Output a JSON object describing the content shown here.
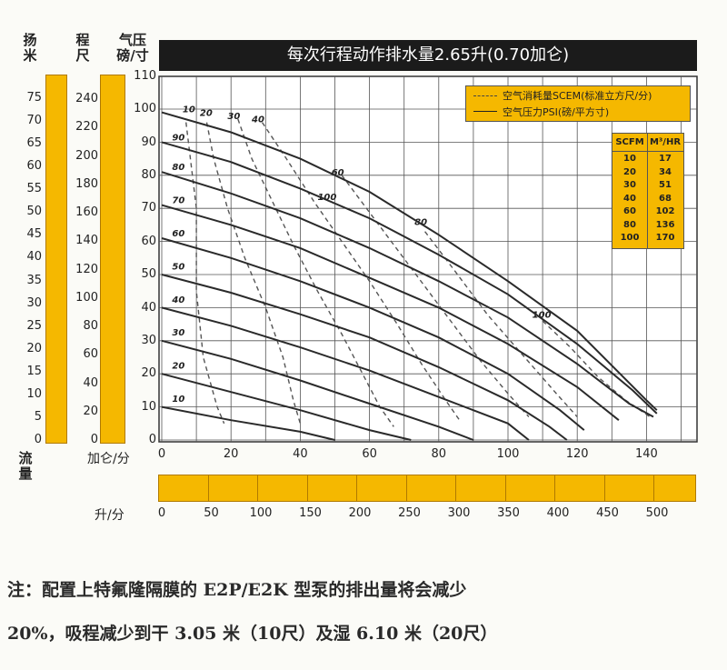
{
  "chart_data": {
    "type": "line",
    "title": "每次行程动作排水量2.65升(0.70加仑)",
    "xlabel": "流量",
    "x_unit_gpm": "加仑/分",
    "x_unit_lpm": "升/分",
    "xlim": [
      0,
      150
    ],
    "x_ticks": [
      "0",
      "20",
      "40",
      "60",
      "80",
      "100",
      "120",
      "140"
    ],
    "lpm_ticks": [
      "0",
      "50",
      "100",
      "150",
      "200",
      "250",
      "300",
      "350",
      "400",
      "450",
      "500"
    ],
    "ylim": [
      0,
      110
    ],
    "psi_label": "气压\n磅/寸",
    "psi_ticks": [
      "0",
      "10",
      "20",
      "30",
      "40",
      "50",
      "60",
      "70",
      "80",
      "90",
      "100",
      "110"
    ],
    "ft_label": "程\n尺",
    "ft_ticks": [
      "0",
      "20",
      "40",
      "60",
      "80",
      "100",
      "120",
      "140",
      "160",
      "180",
      "200",
      "220",
      "240"
    ],
    "m_label": "扬\n米",
    "m_ticks": [
      "0",
      "5",
      "10",
      "15",
      "20",
      "25",
      "30",
      "35",
      "40",
      "45",
      "50",
      "55",
      "60",
      "65",
      "70",
      "75"
    ],
    "legend": {
      "dashed": "空气消耗量SCEM(标准立方尺/分)",
      "solid": "空气压力PSI(磅/平方寸)"
    },
    "conversion_table": {
      "headers": [
        "SCFM",
        "M³/HR"
      ],
      "rows": [
        [
          "10",
          "17"
        ],
        [
          "20",
          "34"
        ],
        [
          "30",
          "51"
        ],
        [
          "40",
          "68"
        ],
        [
          "60",
          "102"
        ],
        [
          "80",
          "136"
        ],
        [
          "100",
          "170"
        ]
      ]
    },
    "pressure_series": [
      {
        "name": "10",
        "points": [
          [
            0,
            10
          ],
          [
            20,
            6
          ],
          [
            40,
            2.5
          ],
          [
            50,
            0
          ]
        ]
      },
      {
        "name": "20",
        "points": [
          [
            0,
            20
          ],
          [
            20,
            14.5
          ],
          [
            40,
            9
          ],
          [
            60,
            3
          ],
          [
            72,
            0
          ]
        ]
      },
      {
        "name": "30",
        "points": [
          [
            0,
            30
          ],
          [
            20,
            24.5
          ],
          [
            40,
            18
          ],
          [
            60,
            11
          ],
          [
            80,
            4
          ],
          [
            90,
            0
          ]
        ]
      },
      {
        "name": "40",
        "points": [
          [
            0,
            40
          ],
          [
            20,
            34.5
          ],
          [
            40,
            28
          ],
          [
            60,
            21
          ],
          [
            80,
            13
          ],
          [
            100,
            5
          ],
          [
            106,
            0
          ]
        ]
      },
      {
        "name": "50",
        "points": [
          [
            0,
            50
          ],
          [
            20,
            44.5
          ],
          [
            40,
            38
          ],
          [
            60,
            31
          ],
          [
            80,
            22
          ],
          [
            100,
            12
          ],
          [
            112,
            4
          ],
          [
            117,
            0
          ]
        ]
      },
      {
        "name": "60",
        "points": [
          [
            0,
            61
          ],
          [
            20,
            55
          ],
          [
            40,
            48
          ],
          [
            60,
            40
          ],
          [
            80,
            31
          ],
          [
            100,
            20
          ],
          [
            115,
            9
          ],
          [
            122,
            3
          ]
        ]
      },
      {
        "name": "70",
        "points": [
          [
            0,
            71
          ],
          [
            20,
            65
          ],
          [
            40,
            58
          ],
          [
            60,
            49
          ],
          [
            80,
            40
          ],
          [
            100,
            29
          ],
          [
            120,
            16
          ],
          [
            132,
            6
          ]
        ]
      },
      {
        "name": "80",
        "points": [
          [
            0,
            81
          ],
          [
            20,
            74.5
          ],
          [
            40,
            67
          ],
          [
            60,
            58
          ],
          [
            80,
            48
          ],
          [
            100,
            37
          ],
          [
            120,
            23
          ],
          [
            135,
            11
          ],
          [
            142,
            7
          ]
        ]
      },
      {
        "name": "90",
        "points": [
          [
            0,
            90
          ],
          [
            20,
            84
          ],
          [
            40,
            76
          ],
          [
            60,
            67
          ],
          [
            80,
            56
          ],
          [
            100,
            44
          ],
          [
            120,
            29
          ],
          [
            136,
            15
          ],
          [
            143,
            8
          ]
        ]
      },
      {
        "name": "100",
        "points": [
          [
            0,
            99
          ],
          [
            20,
            93
          ],
          [
            40,
            85
          ],
          [
            60,
            75
          ],
          [
            80,
            62
          ],
          [
            100,
            48
          ],
          [
            120,
            33
          ],
          [
            140,
            12
          ],
          [
            143,
            9
          ]
        ]
      }
    ],
    "air_series": [
      {
        "name": "10",
        "points": [
          [
            7,
            96
          ],
          [
            10,
            70
          ],
          [
            10,
            45
          ],
          [
            12,
            25
          ],
          [
            16,
            10
          ],
          [
            18,
            5
          ]
        ]
      },
      {
        "name": "20",
        "points": [
          [
            13,
            96
          ],
          [
            15,
            85
          ],
          [
            19,
            70
          ],
          [
            24,
            55
          ],
          [
            30,
            40
          ],
          [
            35,
            25
          ],
          [
            38,
            12
          ],
          [
            40,
            5
          ]
        ]
      },
      {
        "name": "30",
        "points": [
          [
            22,
            97
          ],
          [
            26,
            85
          ],
          [
            32,
            72
          ],
          [
            38,
            59
          ],
          [
            45,
            45
          ],
          [
            52,
            32
          ],
          [
            58,
            20
          ],
          [
            63,
            10
          ],
          [
            67,
            4
          ]
        ]
      },
      {
        "name": "40",
        "points": [
          [
            29,
            96
          ],
          [
            36,
            85
          ],
          [
            44,
            72
          ],
          [
            52,
            60
          ],
          [
            60,
            48
          ],
          [
            68,
            35
          ],
          [
            75,
            23
          ],
          [
            82,
            12
          ],
          [
            86,
            6
          ]
        ]
      },
      {
        "name": "60",
        "points": [
          [
            52,
            80
          ],
          [
            62,
            66
          ],
          [
            72,
            52
          ],
          [
            82,
            38
          ],
          [
            92,
            24
          ],
          [
            100,
            14
          ],
          [
            106,
            7
          ]
        ]
      },
      {
        "name": "80",
        "points": [
          [
            76,
            63
          ],
          [
            84,
            52
          ],
          [
            94,
            38
          ],
          [
            104,
            26
          ],
          [
            114,
            14
          ],
          [
            120,
            7
          ]
        ]
      },
      {
        "name": "100",
        "points": [
          [
            110,
            36
          ],
          [
            118,
            28
          ],
          [
            126,
            19
          ],
          [
            134,
            12
          ],
          [
            141,
            7
          ]
        ]
      }
    ],
    "pressure_label_pos": {
      "10": [
        3,
        11
      ],
      "20": [
        3,
        21
      ],
      "30": [
        3,
        31
      ],
      "40": [
        3,
        41
      ],
      "50": [
        3,
        51
      ],
      "60": [
        3,
        61
      ],
      "70": [
        3,
        71
      ],
      "80": [
        3,
        81
      ],
      "90": [
        3,
        90
      ],
      "100": [
        45,
        72
      ]
    },
    "air_label_pos": {
      "10": [
        6,
        99
      ],
      "20": [
        11,
        98
      ],
      "30": [
        19,
        97
      ],
      "40": [
        26,
        96
      ],
      "60": [
        49,
        80
      ],
      "80": [
        73,
        65
      ],
      "100": [
        107,
        37
      ]
    }
  },
  "footnote": {
    "line1": "注：配置上特氟隆隔膜的 E2P/E2K 型泵的排出量将会减少",
    "line2": "20%，吸程减少到干 3.05 米（10尺）及湿 6.10 米（20尺）"
  }
}
